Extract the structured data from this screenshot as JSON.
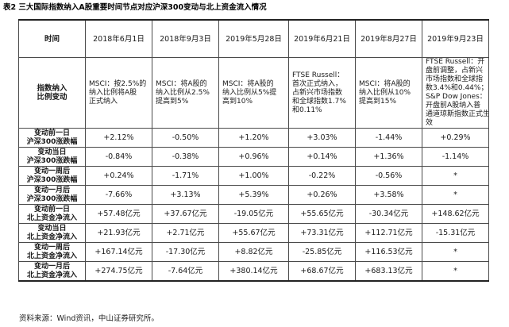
{
  "caption": "表2 三大国际指数纳入A股重要时间节点对应沪深300变动与北上资金流入情况",
  "source": "资料来源：Wind资讯，中山证券研究所。",
  "table": {
    "header_label": "时间",
    "dates": [
      "2018年6月1日",
      "2018年9月3日",
      "2019年5月28日",
      "2019年6月21日",
      "2019年8月27日",
      "2019年9月23日"
    ],
    "desc_label": [
      "指数纳入",
      "比例变动"
    ],
    "descriptions": [
      [
        "MSCI：按2.5%的",
        "纳入比例将A股",
        "正式纳入"
      ],
      [
        "MSCI：将A股的",
        "纳入比例从2.5%",
        "提高到5%"
      ],
      [
        "MSCI：将A股的",
        "纳入比例从5%提",
        "高到10%"
      ],
      [
        "FTSE Russell：",
        "首次正式纳入，",
        "占新兴市场指数",
        "和全球指数1.7%",
        "和0.11%"
      ],
      [
        "MSCI：将A股的",
        "纳入比例从10%",
        "提高到15%"
      ],
      [
        "FTSE Russell：开",
        "盘前调整，占新兴",
        "市场指数和全球指",
        "数3.4%和0.44%；",
        "S&P Dow Jones：",
        "开盘前A股纳入普",
        "通道琼斯指数正式生",
        "效"
      ]
    ],
    "rows": [
      {
        "label": [
          "变动前一日",
          "沪深300涨跌幅"
        ],
        "values": [
          "+2.12%",
          "-0.50%",
          "+1.20%",
          "+3.03%",
          "-1.44%",
          "+0.29%"
        ]
      },
      {
        "label": [
          "变动当日",
          "沪深300涨跌幅"
        ],
        "values": [
          "-0.84%",
          "-0.38%",
          "+0.96%",
          "+0.14%",
          "+1.36%",
          "-1.14%"
        ]
      },
      {
        "label": [
          "变动一周后",
          "沪深300涨跌幅"
        ],
        "values": [
          "+0.24%",
          "-1.71%",
          "+1.00%",
          "-0.22%",
          "-0.56%",
          "*"
        ]
      },
      {
        "label": [
          "变动一月后",
          "沪深300涨跌幅"
        ],
        "values": [
          "-7.66%",
          "+3.13%",
          "+5.39%",
          "+0.26%",
          "+3.58%",
          "*"
        ]
      },
      {
        "label": [
          "变动前一日",
          "北上资金净流入"
        ],
        "values": [
          "+57.48亿元",
          "+37.67亿元",
          "-19.05亿元",
          "+55.65亿元",
          "-30.34亿元",
          "+148.62亿元"
        ]
      },
      {
        "label": [
          "变动当日",
          "北上资金净流入"
        ],
        "values": [
          "+21.93亿元",
          "+2.71亿元",
          "+55.67亿元",
          "+73.31亿元",
          "+112.71亿元",
          "-15.31亿元"
        ]
      },
      {
        "label": [
          "变动一周后",
          "北上资金净流入"
        ],
        "values": [
          "+167.14亿元",
          "-17.30亿元",
          "+8.82亿元",
          "-25.85亿元",
          "+116.53亿元",
          "*"
        ]
      },
      {
        "label": [
          "变动一月后",
          "北上资金净流入"
        ],
        "values": [
          "+274.75亿元",
          "-7.64亿元",
          "+380.14亿元",
          "+68.67亿元",
          "+683.13亿元",
          "*"
        ]
      }
    ]
  }
}
